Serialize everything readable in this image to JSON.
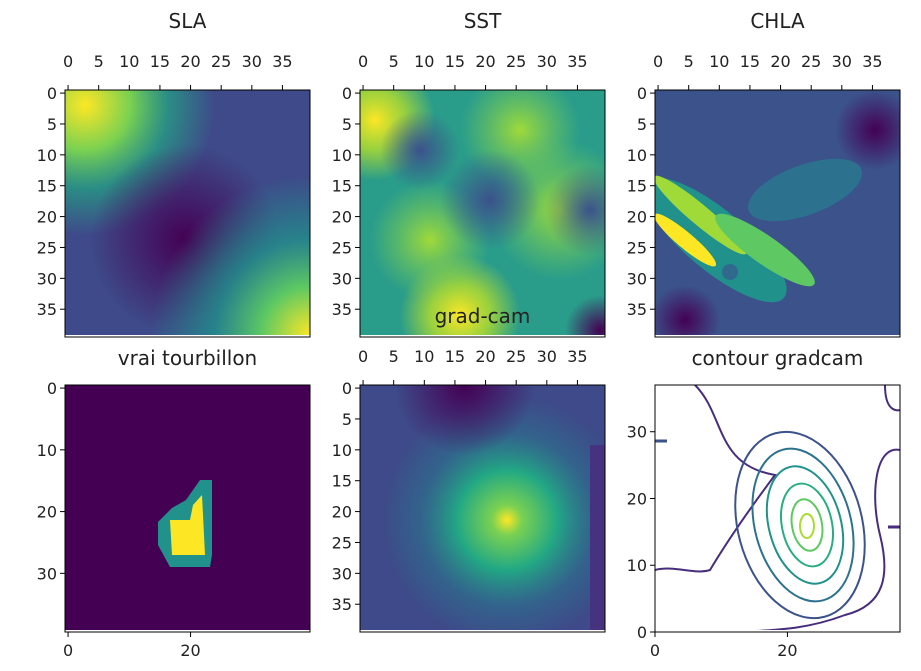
{
  "chart_data": [
    {
      "type": "image",
      "title": "SLA",
      "xaxis": "top",
      "xlim": [
        -0.5,
        39.5
      ],
      "ylim": [
        39.5,
        -0.5
      ],
      "xticks": [
        0,
        5,
        10,
        15,
        20,
        25,
        30,
        35
      ],
      "yticks": [
        0,
        5,
        10,
        15,
        20,
        25,
        30,
        35
      ]
    },
    {
      "type": "image",
      "title": "SST",
      "xaxis": "top",
      "xlim": [
        -0.5,
        39.5
      ],
      "ylim": [
        39.5,
        -0.5
      ],
      "xticks": [
        0,
        5,
        10,
        15,
        20,
        25,
        30,
        35
      ],
      "yticks": [
        0,
        5,
        10,
        15,
        20,
        25,
        30,
        35
      ]
    },
    {
      "type": "image",
      "title": "CHLA",
      "xaxis": "top",
      "xlim": [
        -0.5,
        39.5
      ],
      "ylim": [
        39.5,
        -0.5
      ],
      "xticks": [
        0,
        5,
        10,
        15,
        20,
        25,
        30,
        35
      ],
      "yticks": [
        0,
        5,
        10,
        15,
        20,
        25,
        30,
        35
      ]
    },
    {
      "type": "image",
      "title": "vrai tourbillon",
      "xaxis": "bottom",
      "xlim": [
        -0.5,
        39.5
      ],
      "ylim": [
        39.5,
        -0.5
      ],
      "xticks": [
        0,
        20
      ],
      "yticks": [
        0,
        10,
        20,
        30
      ]
    },
    {
      "type": "image",
      "title": "grad-cam",
      "xaxis": "top",
      "xlim": [
        -0.5,
        39.5
      ],
      "ylim": [
        39.5,
        -0.5
      ],
      "xticks": [
        0,
        5,
        10,
        15,
        20,
        25,
        30,
        35
      ],
      "yticks": [
        0,
        5,
        10,
        15,
        20,
        25,
        30,
        35
      ]
    },
    {
      "type": "contour",
      "title": "contour gradcam",
      "xaxis": "bottom",
      "xlim": [
        0,
        37
      ],
      "ylim": [
        0,
        37
      ],
      "xticks": [
        0,
        20
      ],
      "yticks": [
        0,
        10,
        20,
        30
      ]
    }
  ]
}
